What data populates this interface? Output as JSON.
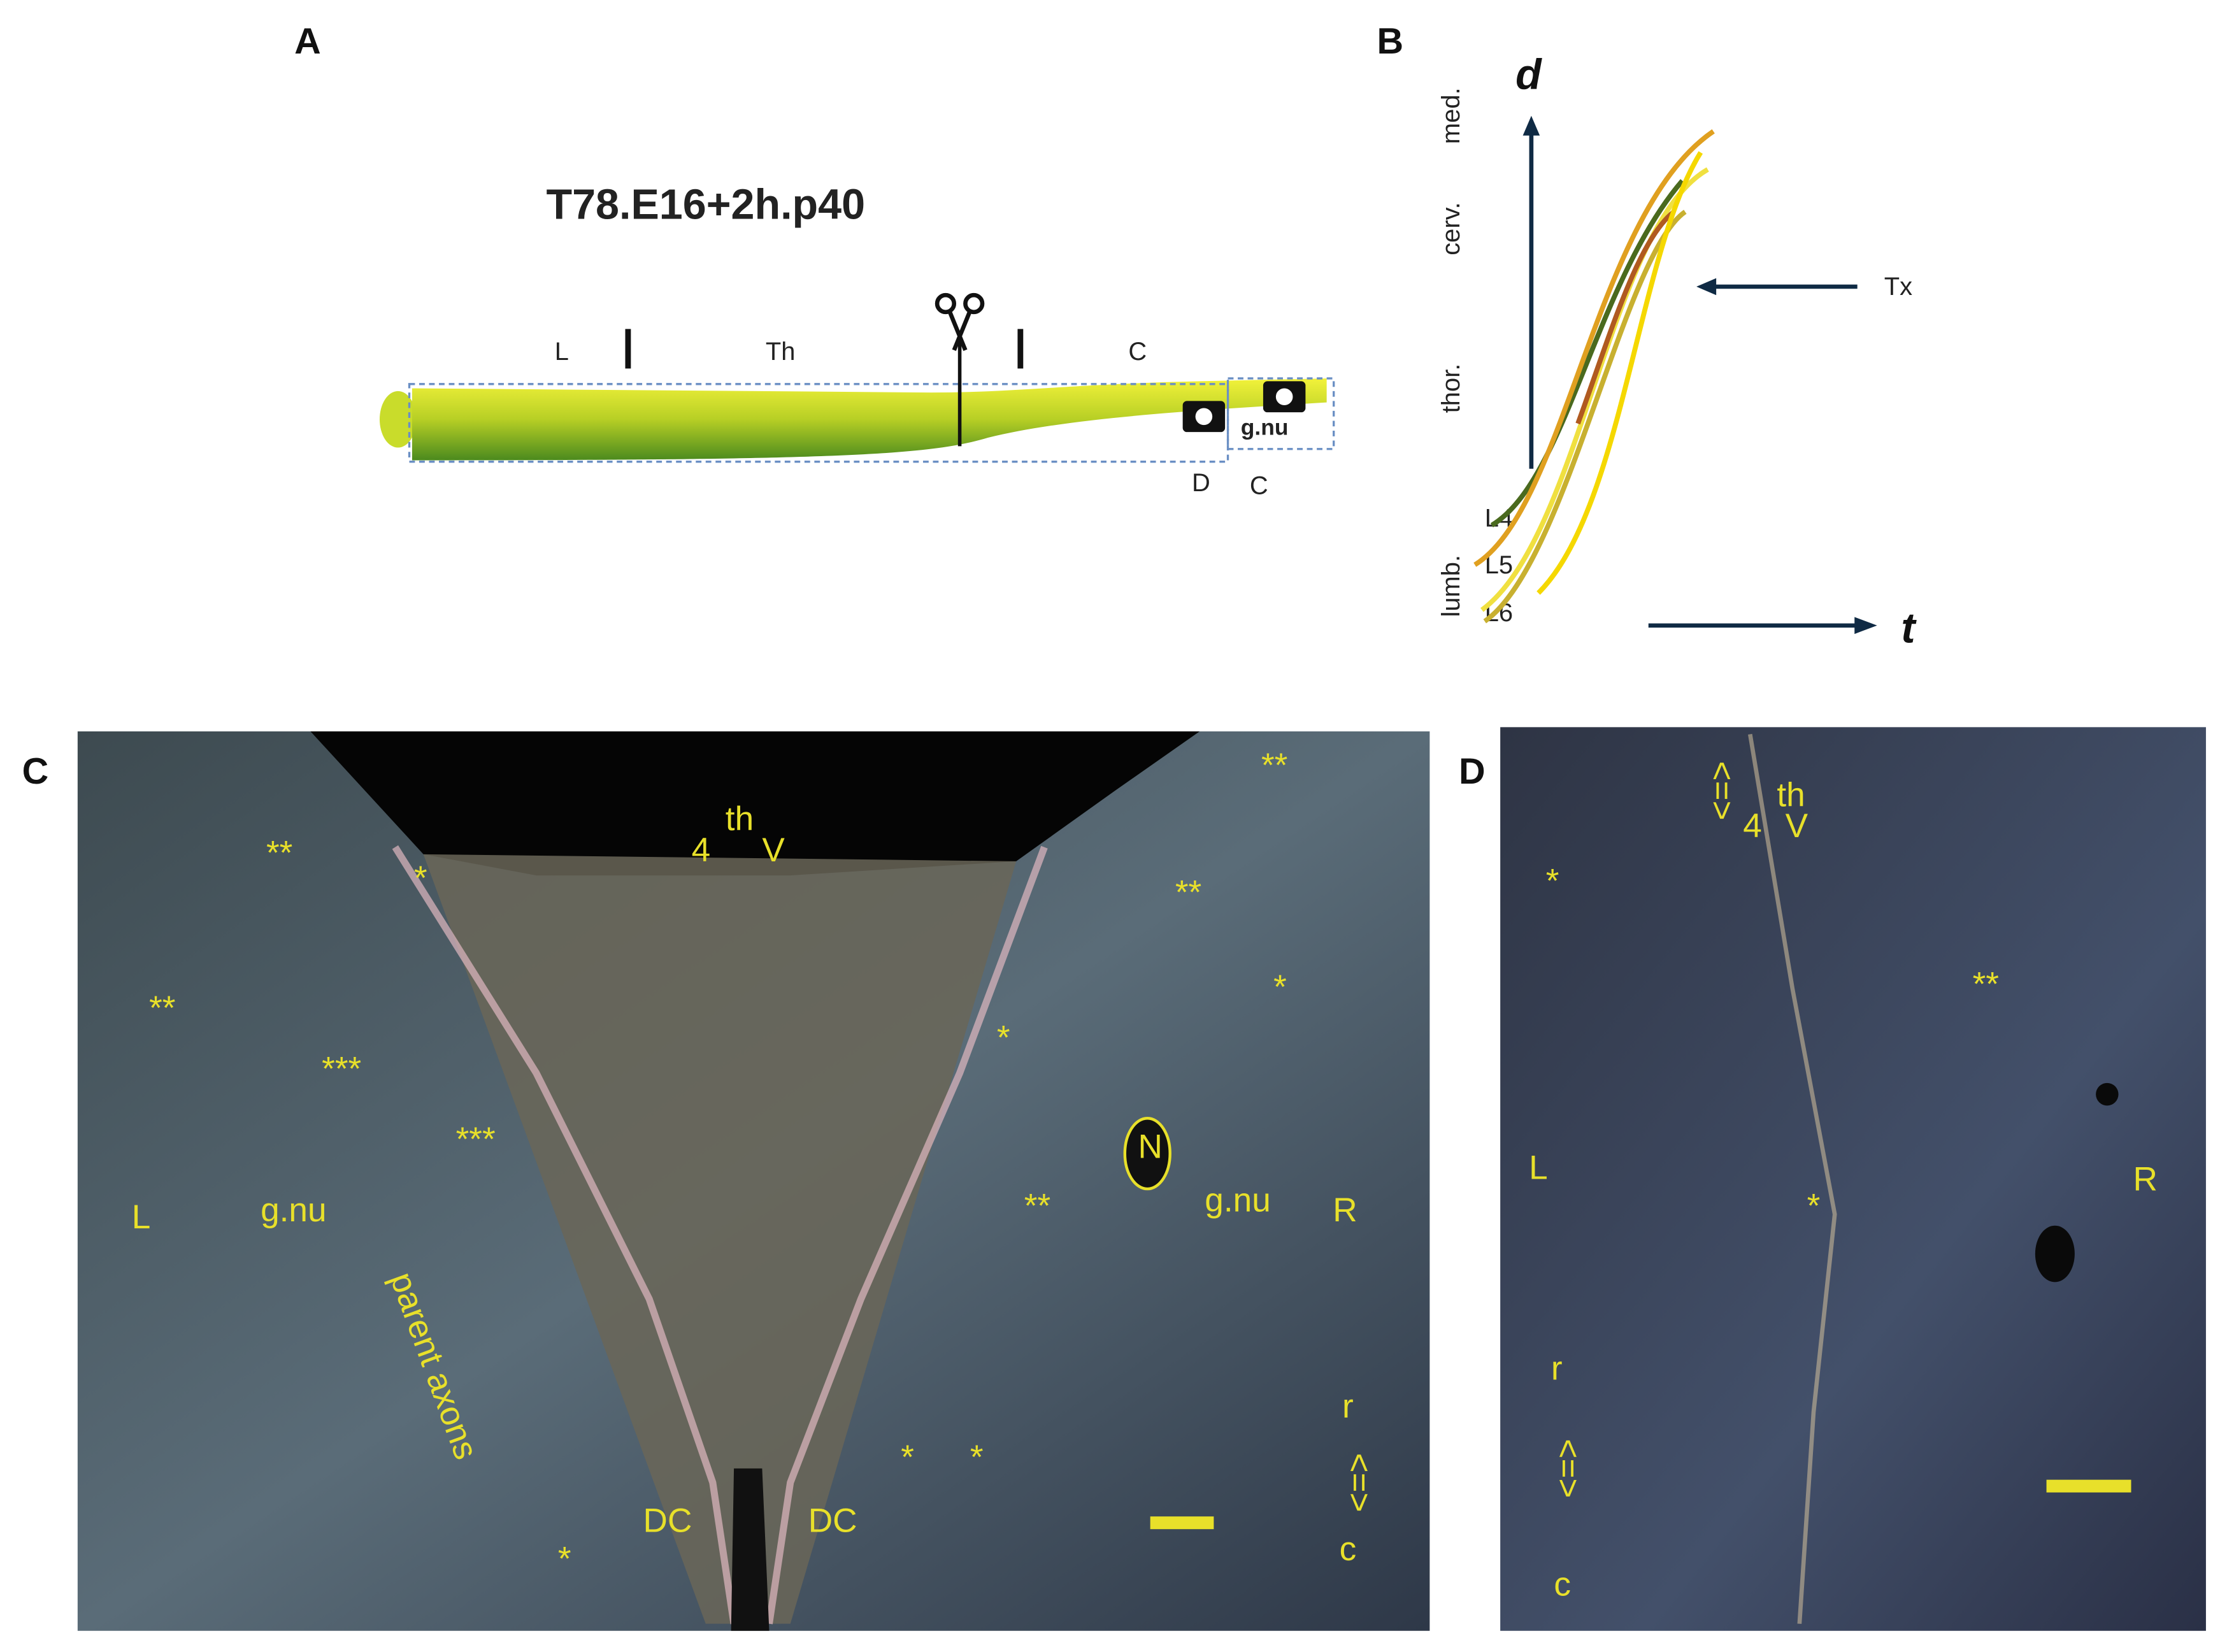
{
  "panels": {
    "a": {
      "label": "A",
      "title": "T78.E16+2h.p40",
      "segments": [
        "L",
        "Th",
        "C"
      ],
      "box_label": "g.nu",
      "boxes": [
        "D",
        "C"
      ]
    },
    "b": {
      "label": "B",
      "y_axis": "d",
      "x_axis": "t",
      "regions": [
        "med.",
        "cerv.",
        "thor.",
        "lumb."
      ],
      "levels": [
        "L4",
        "L5",
        "L6"
      ],
      "arrow": "Tx"
    },
    "c": {
      "label": "C",
      "ventricle": [
        "4",
        "th",
        "V"
      ],
      "annotations": [
        "**",
        "*",
        "**",
        "***",
        "***",
        "L",
        "g.nu",
        "parent axons",
        "*",
        "DC",
        "DC",
        "*",
        "*",
        "**",
        "N",
        "g.nu",
        "R",
        "*",
        "*",
        "**",
        "**",
        "r",
        "<=>",
        "c"
      ]
    },
    "d": {
      "label": "D",
      "ventricle": [
        "4",
        "th",
        "V"
      ],
      "annotations": [
        "<=>",
        "*",
        "**",
        "L",
        "*",
        "R",
        "r",
        "<=>",
        "c"
      ]
    }
  }
}
